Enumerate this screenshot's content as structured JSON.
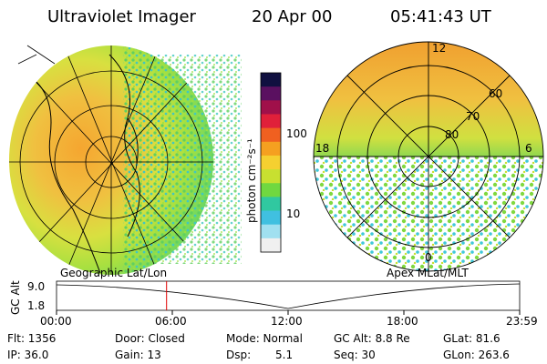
{
  "header": {
    "title": "Ultraviolet Imager",
    "date": "20 Apr 00",
    "time": "05:41:43 UT"
  },
  "colorbar": {
    "unit_label": "photon cm⁻²s⁻¹",
    "ticks": [
      "100",
      "10"
    ],
    "colors": [
      "#101040",
      "#5a1060",
      "#a0104a",
      "#e0203a",
      "#f06020",
      "#f5a020",
      "#f5d030",
      "#c8e030",
      "#70d840",
      "#30c8a0",
      "#40c0e0",
      "#a0e0f0",
      "#f0f0f0"
    ]
  },
  "geo_map": {
    "label": "Geographic Lat/Lon",
    "grid_color": "#000000"
  },
  "polar_map": {
    "label": "Apex MLat/MLT",
    "mlt_labels": {
      "top": "12",
      "left": "18",
      "right": "6",
      "bottom": "0"
    },
    "lat_labels": [
      "60",
      "70",
      "80"
    ]
  },
  "altitude_plot": {
    "ylabel": "GC Alt",
    "yticks": [
      "9.0",
      "1.8"
    ],
    "xticks": [
      "00:00",
      "06:00",
      "12:00",
      "18:00",
      "23:59"
    ],
    "marker_color": "#e00000",
    "marker_time_hours": 5.7
  },
  "info": {
    "flt": "Flt: 1356",
    "ip": "IP: 36.0",
    "door": "Door: Closed",
    "gain": "Gain: 13",
    "mode": "Mode: Normal",
    "dsp_label": "Dsp:",
    "dsp_value": "5.1",
    "gc_alt": "GC Alt: 8.8 Re",
    "seq": "Seq: 30",
    "glat": "GLat:  81.6",
    "glon": "GLon: 263.6"
  }
}
